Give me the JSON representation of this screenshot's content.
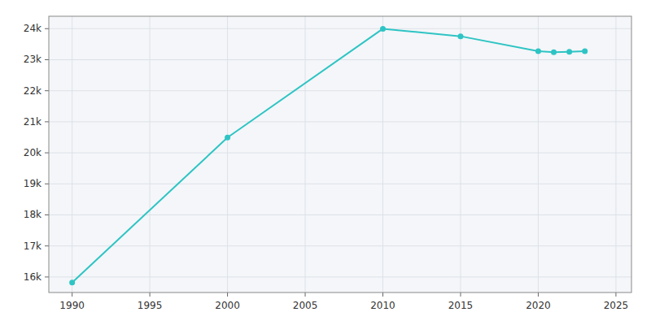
{
  "chart_data": {
    "type": "line",
    "x": [
      1990,
      2000,
      2010,
      2015,
      2020,
      2021,
      2022,
      2023
    ],
    "values": [
      15820,
      20493,
      23996,
      23755,
      23276,
      23242,
      23257,
      23276
    ],
    "color": "#2EC4C4",
    "marker": "circle",
    "xlim": [
      1988.5,
      2026
    ],
    "ylim": [
      15500,
      24400
    ],
    "xticks": [
      1990,
      1995,
      2000,
      2005,
      2010,
      2015,
      2020,
      2025
    ],
    "yticks": [
      {
        "value": 16000,
        "label": "16k"
      },
      {
        "value": 17000,
        "label": "17k"
      },
      {
        "value": 18000,
        "label": "18k"
      },
      {
        "value": 19000,
        "label": "19k"
      },
      {
        "value": 20000,
        "label": "20k"
      },
      {
        "value": 21000,
        "label": "21k"
      },
      {
        "value": 22000,
        "label": "22k"
      },
      {
        "value": 23000,
        "label": "23k"
      },
      {
        "value": 24000,
        "label": "24k"
      }
    ],
    "grid": true
  }
}
